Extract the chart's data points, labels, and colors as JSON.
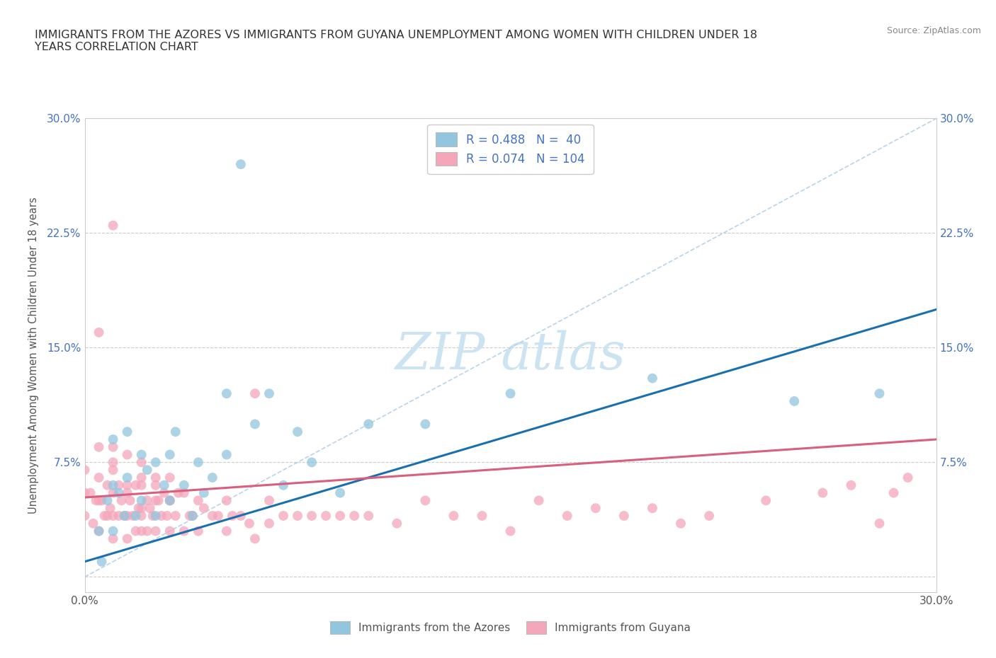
{
  "title": "IMMIGRANTS FROM THE AZORES VS IMMIGRANTS FROM GUYANA UNEMPLOYMENT AMONG WOMEN WITH CHILDREN UNDER 18\nYEARS CORRELATION CHART",
  "source": "Source: ZipAtlas.com",
  "ylabel": "Unemployment Among Women with Children Under 18 years",
  "xlim": [
    0.0,
    0.3
  ],
  "ylim": [
    -0.01,
    0.3
  ],
  "xtick_positions": [
    0.0,
    0.075,
    0.15,
    0.225,
    0.3
  ],
  "ytick_positions": [
    0.0,
    0.075,
    0.15,
    0.225,
    0.3
  ],
  "xticklabels": [
    "0.0%",
    "",
    "",
    "",
    "30.0%"
  ],
  "yticklabels_left": [
    "",
    "7.5%",
    "15.0%",
    "22.5%",
    "30.0%"
  ],
  "yticklabels_right": [
    "",
    "7.5%",
    "15.0%",
    "22.5%",
    "30.0%"
  ],
  "azores_R": 0.488,
  "azores_N": 40,
  "guyana_R": 0.074,
  "guyana_N": 104,
  "azores_color": "#92c5de",
  "guyana_color": "#f4a6ba",
  "azores_label": "Immigrants from the Azores",
  "guyana_label": "Immigrants from Guyana",
  "regression_azores_color": "#1a6faf",
  "regression_guyana_color": "#d95f7f",
  "diagonal_color": "#b8d4e8",
  "tick_color": "#4472c4",
  "title_color": "#333333",
  "source_color": "#888888",
  "watermark_color": "#cce4f2",
  "grid_color": "#cccccc",
  "azores_x": [
    0.005,
    0.006,
    0.008,
    0.01,
    0.01,
    0.01,
    0.012,
    0.014,
    0.015,
    0.015,
    0.018,
    0.02,
    0.02,
    0.022,
    0.025,
    0.025,
    0.028,
    0.03,
    0.03,
    0.032,
    0.035,
    0.038,
    0.04,
    0.042,
    0.045,
    0.05,
    0.05,
    0.055,
    0.06,
    0.065,
    0.07,
    0.075,
    0.08,
    0.09,
    0.1,
    0.12,
    0.15,
    0.2,
    0.25,
    0.28
  ],
  "azores_y": [
    0.03,
    0.01,
    0.05,
    0.03,
    0.06,
    0.09,
    0.055,
    0.04,
    0.065,
    0.095,
    0.04,
    0.05,
    0.08,
    0.07,
    0.04,
    0.075,
    0.06,
    0.05,
    0.08,
    0.095,
    0.06,
    0.04,
    0.075,
    0.055,
    0.065,
    0.08,
    0.12,
    0.27,
    0.1,
    0.12,
    0.06,
    0.095,
    0.075,
    0.055,
    0.1,
    0.1,
    0.12,
    0.13,
    0.115,
    0.12
  ],
  "guyana_x": [
    0.0,
    0.0,
    0.0,
    0.002,
    0.003,
    0.004,
    0.005,
    0.005,
    0.005,
    0.005,
    0.006,
    0.007,
    0.008,
    0.008,
    0.009,
    0.01,
    0.01,
    0.01,
    0.01,
    0.01,
    0.01,
    0.012,
    0.012,
    0.013,
    0.014,
    0.015,
    0.015,
    0.015,
    0.015,
    0.016,
    0.017,
    0.018,
    0.018,
    0.019,
    0.02,
    0.02,
    0.02,
    0.02,
    0.02,
    0.022,
    0.022,
    0.023,
    0.024,
    0.025,
    0.025,
    0.025,
    0.026,
    0.027,
    0.028,
    0.029,
    0.03,
    0.03,
    0.03,
    0.032,
    0.033,
    0.035,
    0.035,
    0.037,
    0.038,
    0.04,
    0.04,
    0.042,
    0.045,
    0.047,
    0.05,
    0.05,
    0.052,
    0.055,
    0.058,
    0.06,
    0.06,
    0.065,
    0.065,
    0.07,
    0.075,
    0.08,
    0.085,
    0.09,
    0.095,
    0.1,
    0.11,
    0.12,
    0.13,
    0.14,
    0.15,
    0.16,
    0.17,
    0.18,
    0.19,
    0.2,
    0.21,
    0.22,
    0.24,
    0.26,
    0.27,
    0.28,
    0.285,
    0.29,
    0.005,
    0.01,
    0.015,
    0.02,
    0.025,
    0.03
  ],
  "guyana_y": [
    0.04,
    0.055,
    0.07,
    0.055,
    0.035,
    0.05,
    0.03,
    0.05,
    0.065,
    0.085,
    0.05,
    0.04,
    0.04,
    0.06,
    0.045,
    0.025,
    0.04,
    0.055,
    0.07,
    0.085,
    0.23,
    0.04,
    0.06,
    0.05,
    0.04,
    0.025,
    0.04,
    0.06,
    0.08,
    0.05,
    0.04,
    0.03,
    0.06,
    0.045,
    0.03,
    0.045,
    0.06,
    0.04,
    0.075,
    0.03,
    0.05,
    0.045,
    0.04,
    0.03,
    0.05,
    0.065,
    0.05,
    0.04,
    0.055,
    0.04,
    0.03,
    0.05,
    0.065,
    0.04,
    0.055,
    0.03,
    0.055,
    0.04,
    0.04,
    0.03,
    0.05,
    0.045,
    0.04,
    0.04,
    0.03,
    0.05,
    0.04,
    0.04,
    0.035,
    0.025,
    0.12,
    0.035,
    0.05,
    0.04,
    0.04,
    0.04,
    0.04,
    0.04,
    0.04,
    0.04,
    0.035,
    0.05,
    0.04,
    0.04,
    0.03,
    0.05,
    0.04,
    0.045,
    0.04,
    0.045,
    0.035,
    0.04,
    0.05,
    0.055,
    0.06,
    0.035,
    0.055,
    0.065,
    0.16,
    0.075,
    0.055,
    0.065,
    0.06,
    0.05
  ]
}
